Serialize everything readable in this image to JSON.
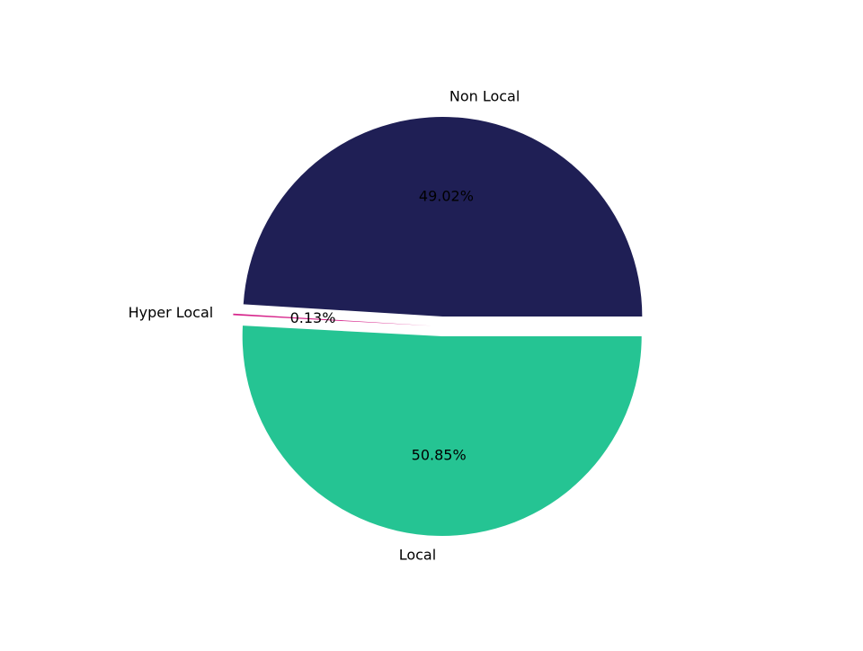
{
  "chart_data": {
    "type": "pie",
    "categories": [
      "Non Local",
      "Hyper Local",
      "Local"
    ],
    "values": [
      49.02,
      0.13,
      50.85
    ],
    "value_labels": [
      "49.02%",
      "0.13%",
      "50.85%"
    ],
    "colors": [
      "#1f1f55",
      "#d6238a",
      "#25c493"
    ]
  }
}
